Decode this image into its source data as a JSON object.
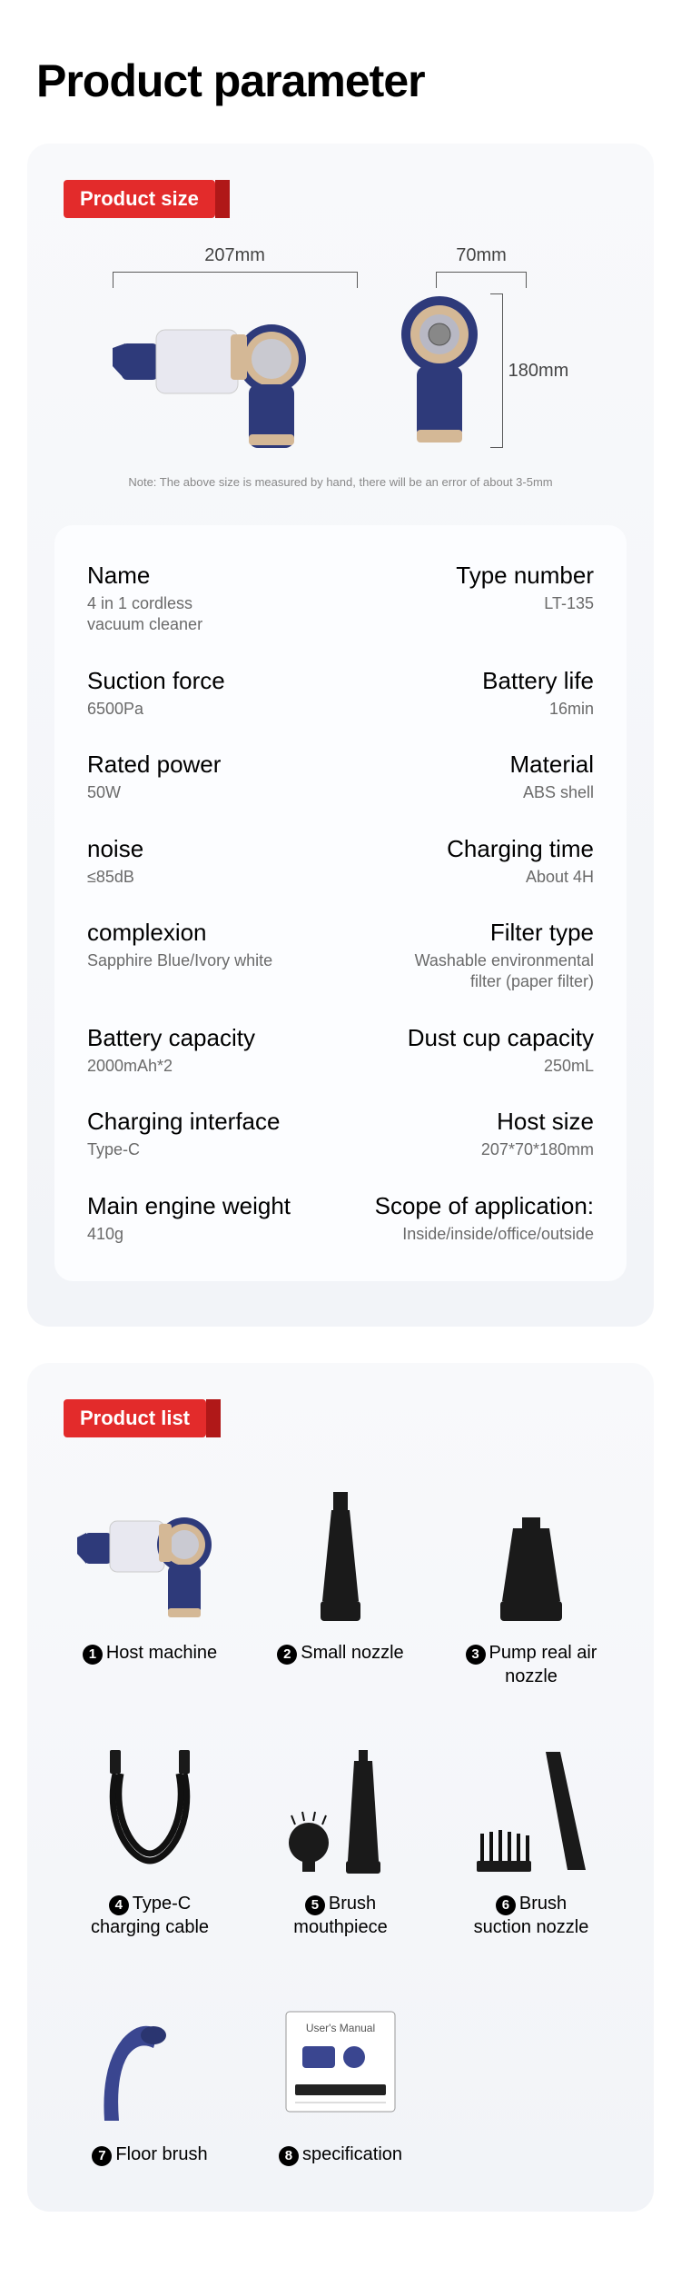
{
  "header": {
    "title": "Product parameter"
  },
  "size_section": {
    "tag": "Product size",
    "w1": "207mm",
    "w2": "70mm",
    "h": "180mm",
    "note": "Note: The above size is measured by hand, there will be an error of about 3-5mm"
  },
  "specs": [
    {
      "lt": "Name",
      "lv": "4 in 1 cordless\nvacuum cleaner",
      "rt": "Type number",
      "rv": "LT-135"
    },
    {
      "lt": "Suction force",
      "lv": "6500Pa",
      "rt": "Battery life",
      "rv": "16min"
    },
    {
      "lt": "Rated power",
      "lv": "50W",
      "rt": "Material",
      "rv": "ABS shell"
    },
    {
      "lt": "noise",
      "lv": "≤85dB",
      "rt": "Charging time",
      "rv": "About 4H"
    },
    {
      "lt": "complexion",
      "lv": "Sapphire Blue/Ivory white",
      "rt": "Filter type",
      "rv": "Washable environmental\nfilter (paper filter)"
    },
    {
      "lt": "Battery capacity",
      "lv": "2000mAh*2",
      "rt": "Dust cup capacity",
      "rv": "250mL"
    },
    {
      "lt": "Charging interface",
      "lv": "Type-C",
      "rt": "Host size",
      "rv": "207*70*180mm"
    },
    {
      "lt": "Main engine weight",
      "lv": "410g",
      "rt": "Scope of application:",
      "rv": "Inside/inside/office/outside"
    }
  ],
  "list_section": {
    "tag": "Product list",
    "items": [
      {
        "n": "1",
        "label": "Host machine"
      },
      {
        "n": "2",
        "label": "Small nozzle"
      },
      {
        "n": "3",
        "label": "Pump real air nozzle"
      },
      {
        "n": "4",
        "label": "Type-C\ncharging cable"
      },
      {
        "n": "5",
        "label": "Brush\nmouthpiece"
      },
      {
        "n": "6",
        "label": "Brush\nsuction nozzle"
      },
      {
        "n": "7",
        "label": "Floor brush"
      },
      {
        "n": "8",
        "label": "specification"
      }
    ]
  },
  "colors": {
    "accent": "#e32b2b",
    "navy": "#2e3a7a",
    "gold": "#d4b896",
    "card_bg": "#f5f6fa"
  }
}
